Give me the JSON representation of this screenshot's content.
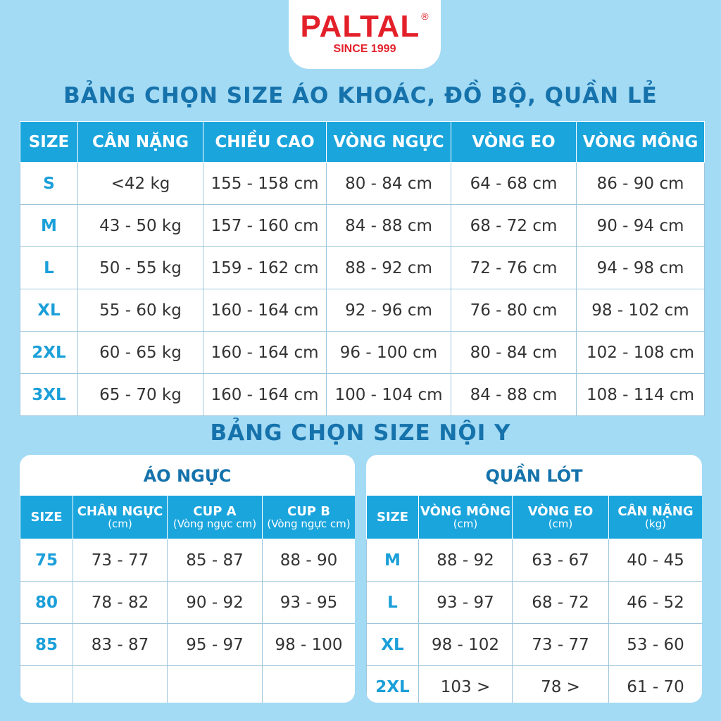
{
  "logo": {
    "brand": "PALTAL",
    "registered": "®",
    "since": "SINCE 1999"
  },
  "title1": "BẢNG CHỌN SIZE ÁO KHOÁC, ĐỒ BỘ, QUẦN LẺ",
  "table1": {
    "headers": [
      "SIZE",
      "CÂN NẶNG",
      "CHIỀU CAO",
      "VÒNG NGỰC",
      "VÒNG EO",
      "VÒNG MÔNG"
    ],
    "rows": [
      [
        "S",
        "<42 kg",
        "155 - 158 cm",
        "80 - 84 cm",
        "64 - 68 cm",
        "86 - 90 cm"
      ],
      [
        "M",
        "43 - 50 kg",
        "157 - 160 cm",
        "84 - 88 cm",
        "68 - 72 cm",
        "90 - 94 cm"
      ],
      [
        "L",
        "50 - 55 kg",
        "159 - 162 cm",
        "88 - 92 cm",
        "72 - 76 cm",
        "94 - 98 cm"
      ],
      [
        "XL",
        "55 - 60 kg",
        "160 - 164 cm",
        "92 - 96 cm",
        "76 - 80 cm",
        "98 - 102 cm"
      ],
      [
        "2XL",
        "60 - 65 kg",
        "160 - 164 cm",
        "96 - 100 cm",
        "80 - 84 cm",
        "102 - 108 cm"
      ],
      [
        "3XL",
        "65 - 70 kg",
        "160 - 164 cm",
        "100 - 104 cm",
        "84 - 88 cm",
        "108 - 114 cm"
      ]
    ]
  },
  "title2": "BẢNG CHỌN SIZE NỘI Y",
  "bra": {
    "title": "ÁO NGỰC",
    "headers": [
      {
        "main": "SIZE",
        "sub": ""
      },
      {
        "main": "CHÂN NGỰC",
        "sub": "(cm)"
      },
      {
        "main": "CUP A",
        "sub": "(Vòng ngực cm)"
      },
      {
        "main": "CUP B",
        "sub": "(Vòng ngực cm)"
      }
    ],
    "rows": [
      [
        "75",
        "73 - 77",
        "85 - 87",
        "88 - 90"
      ],
      [
        "80",
        "78 - 82",
        "90 - 92",
        "93 - 95"
      ],
      [
        "85",
        "83 - 87",
        "95 - 97",
        "98 - 100"
      ],
      [
        "",
        "",
        "",
        ""
      ]
    ]
  },
  "panties": {
    "title": "QUẦN LÓT",
    "headers": [
      {
        "main": "SIZE",
        "sub": ""
      },
      {
        "main": "VÒNG MÔNG",
        "sub": "(cm)"
      },
      {
        "main": "VÒNG EO",
        "sub": "(cm)"
      },
      {
        "main": "CÂN NẶNG",
        "sub": "(kg)"
      }
    ],
    "rows": [
      [
        "M",
        "88 - 92",
        "63 - 67",
        "40 - 45"
      ],
      [
        "L",
        "93 - 97",
        "68 - 72",
        "46 - 52"
      ],
      [
        "XL",
        "98 - 102",
        "73 - 77",
        "53 - 60"
      ],
      [
        "2XL",
        "103 >",
        "78 >",
        "61 - 70"
      ]
    ]
  },
  "colors": {
    "background": "#a3daf4",
    "header": "#1ba5dd",
    "title": "#1572ab",
    "brand": "#e3202a"
  }
}
